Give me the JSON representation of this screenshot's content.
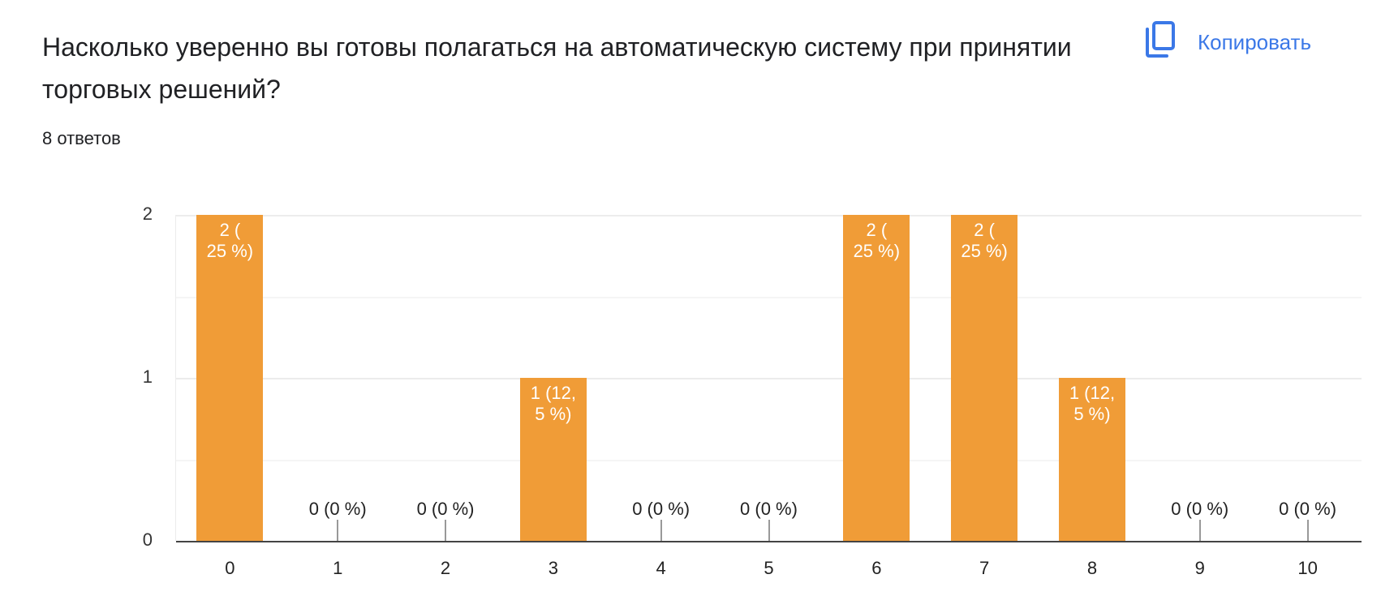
{
  "question": {
    "title": "Насколько уверенно вы готовы полагаться на автоматическую систему при принятии торговых решений?",
    "responses_count": "8 ответов"
  },
  "actions": {
    "copy_label": "Копировать",
    "copy_icon": "copy-icon"
  },
  "colors": {
    "bar": "#f09c37",
    "accent": "#3b78e7",
    "text": "#202124"
  },
  "chart_data": {
    "type": "bar",
    "title": "Насколько уверенно вы готовы полагаться на автоматическую систему при принятии торговых решений?",
    "xlabel": "",
    "ylabel": "",
    "categories": [
      "0",
      "1",
      "2",
      "3",
      "4",
      "5",
      "6",
      "7",
      "8",
      "9",
      "10"
    ],
    "values": [
      2,
      0,
      0,
      1,
      0,
      0,
      2,
      2,
      1,
      0,
      0
    ],
    "data_labels": [
      "2 (25 %)",
      "0 (0 %)",
      "0 (0 %)",
      "1 (12,5 %)",
      "0 (0 %)",
      "0 (0 %)",
      "2 (25 %)",
      "2 (25 %)",
      "1 (12,5 %)",
      "0 (0 %)",
      "0 (0 %)"
    ],
    "bar_label_lines": [
      [
        "2 (",
        "25 %)"
      ],
      [
        "0 (0 %)"
      ],
      [
        "0 (0 %)"
      ],
      [
        "1 (12,",
        "5 %)"
      ],
      [
        "0 (0 %)"
      ],
      [
        "0 (0 %)"
      ],
      [
        "2 (",
        "25 %)"
      ],
      [
        "2 (",
        "25 %)"
      ],
      [
        "1 (12,",
        "5 %)"
      ],
      [
        "0 (0 %)"
      ],
      [
        "0 (0 %)"
      ]
    ],
    "yticks": [
      "0",
      "1",
      "2"
    ],
    "ylim": [
      0,
      2
    ],
    "grid": true,
    "legend": "none"
  }
}
